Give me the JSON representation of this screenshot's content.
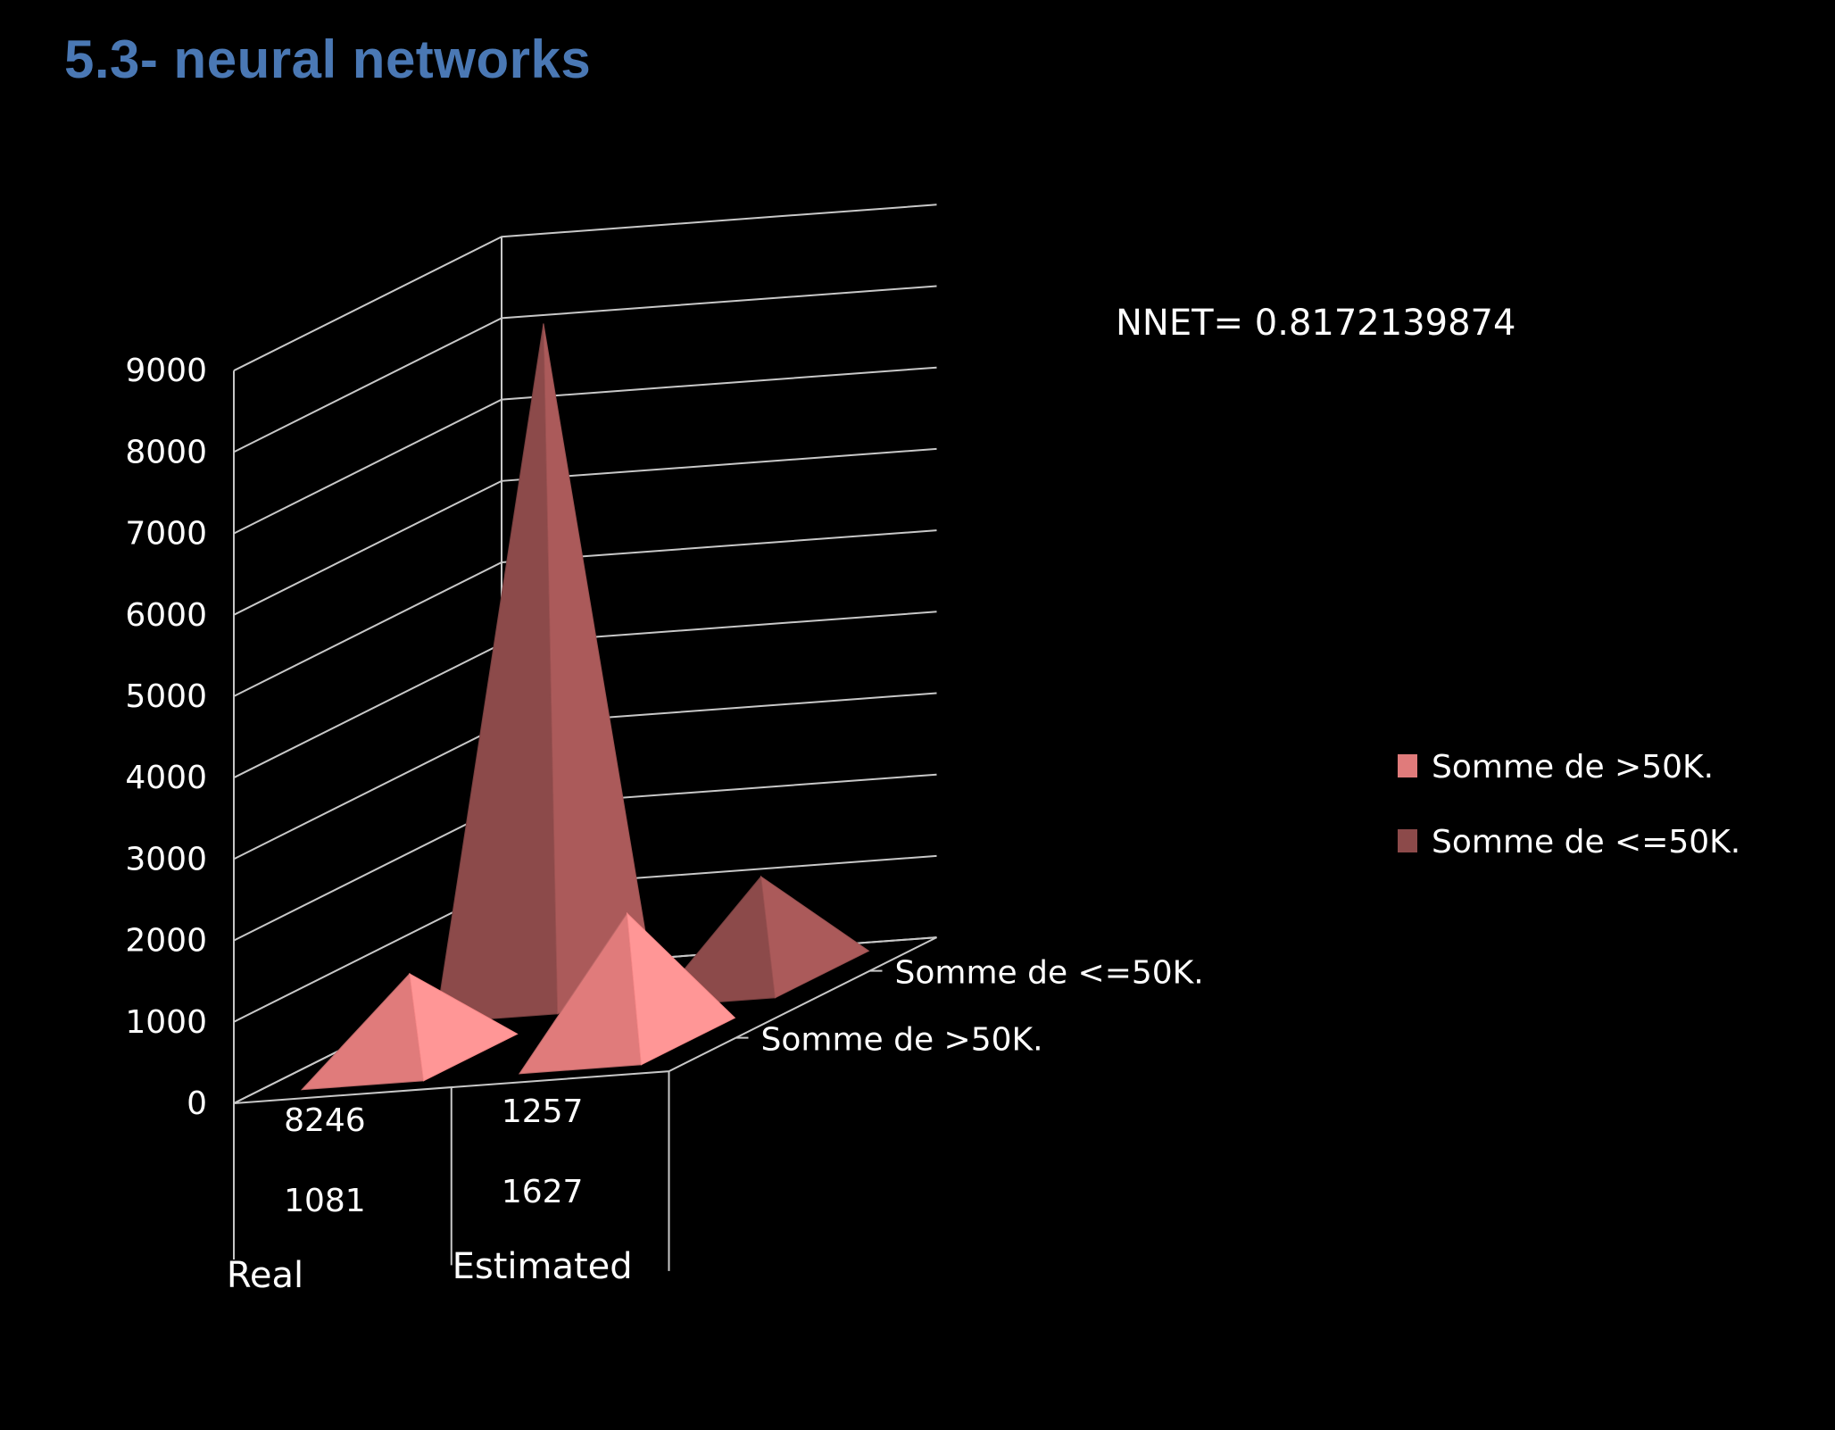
{
  "page": {
    "title": "5.3- neural networks"
  },
  "chart_data": {
    "type": "bar",
    "style": "3d-pyramid",
    "title": "",
    "xlabel": "",
    "ylabel": "",
    "ylim": [
      0,
      9000
    ],
    "yticks": [
      0,
      1000,
      2000,
      3000,
      4000,
      5000,
      6000,
      7000,
      8000,
      9000
    ],
    "grid": true,
    "legend_position": "right",
    "categories": [
      "Real",
      "Estimated"
    ],
    "series": [
      {
        "name": "Somme de >50K.",
        "values": [
          1081,
          1627
        ],
        "labels": [
          "1081",
          "1627"
        ],
        "color": "#e07b7b"
      },
      {
        "name": "Somme de <=50K.",
        "values": [
          8246,
          1257
        ],
        "labels": [
          "8246",
          "1257"
        ],
        "color": "#8c4a4a"
      }
    ],
    "annotation": "NNET= 0.8172139874"
  }
}
